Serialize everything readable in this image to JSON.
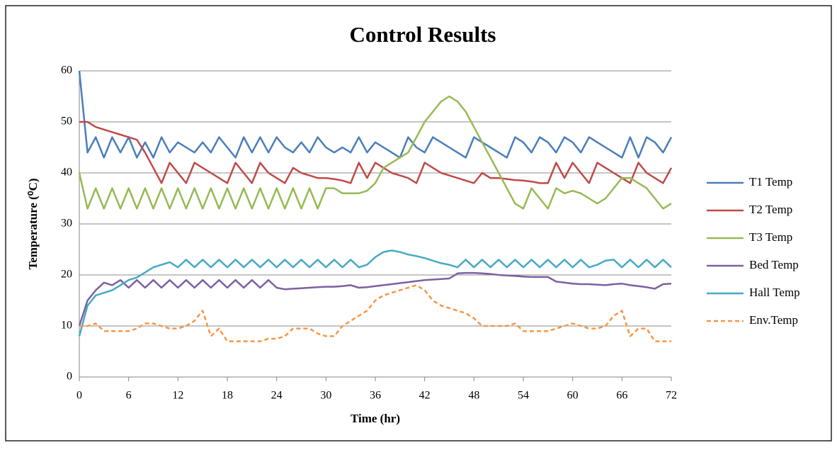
{
  "chart_data": {
    "type": "line",
    "title": "Control Results",
    "y_label": "Temperature (⁰C)",
    "x_label": "Time (hr)",
    "x": [
      0,
      1,
      2,
      3,
      4,
      5,
      6,
      7,
      8,
      9,
      10,
      11,
      12,
      13,
      14,
      15,
      16,
      17,
      18,
      19,
      20,
      21,
      22,
      23,
      24,
      25,
      26,
      27,
      28,
      29,
      30,
      31,
      32,
      33,
      34,
      35,
      36,
      37,
      38,
      39,
      40,
      41,
      42,
      43,
      44,
      45,
      46,
      47,
      48,
      49,
      50,
      51,
      52,
      53,
      54,
      55,
      56,
      57,
      58,
      59,
      60,
      61,
      62,
      63,
      64,
      65,
      66,
      67,
      68,
      69,
      70,
      71,
      72
    ],
    "xlim": [
      0,
      72
    ],
    "xticks": [
      0,
      6,
      12,
      18,
      24,
      30,
      36,
      42,
      48,
      54,
      60,
      66,
      72
    ],
    "ylim": [
      0,
      60
    ],
    "yticks": [
      0,
      10,
      20,
      30,
      40,
      50,
      60
    ],
    "grid": true,
    "legend": "right",
    "series": [
      {
        "name": "T1 Temp",
        "color": "#4a7ebb",
        "values": [
          60,
          44,
          47,
          43,
          47,
          44,
          47,
          43,
          46,
          43,
          47,
          44,
          46,
          45,
          44,
          46,
          44,
          47,
          45,
          43,
          47,
          44,
          47,
          44,
          47,
          45,
          44,
          46,
          44,
          47,
          45,
          44,
          45,
          44,
          47,
          44,
          46,
          45,
          44,
          43,
          47,
          45,
          44,
          47,
          46,
          45,
          44,
          43,
          47,
          46,
          45,
          44,
          43,
          47,
          46,
          44,
          47,
          46,
          44,
          47,
          46,
          44,
          47,
          46,
          45,
          44,
          43,
          47,
          43,
          47,
          46,
          44,
          47
        ]
      },
      {
        "name": "T2 Temp",
        "color": "#be4b48",
        "values": [
          50,
          50,
          49,
          48.5,
          48,
          47.5,
          47,
          46.5,
          44,
          41,
          38,
          42,
          40,
          38,
          42,
          41,
          40,
          39,
          38,
          42,
          40,
          38,
          42,
          40,
          39,
          38,
          41,
          40,
          39.5,
          39,
          39,
          38.8,
          38.5,
          38,
          42,
          39,
          42,
          41,
          40,
          39.5,
          39,
          38,
          42,
          41,
          40,
          39.5,
          39,
          38.5,
          38,
          40,
          39,
          39,
          38.8,
          38.6,
          38.5,
          38.3,
          38,
          38,
          42,
          39,
          42,
          40,
          38,
          42,
          41,
          40,
          39,
          38,
          42,
          40,
          39,
          38,
          41
        ]
      },
      {
        "name": "T3 Temp",
        "color": "#98b954",
        "values": [
          40,
          33,
          37,
          33,
          37,
          33,
          37,
          33,
          37,
          33,
          37,
          33,
          37,
          33,
          37,
          33,
          37,
          33,
          37,
          33,
          37,
          33,
          37,
          33,
          37,
          33,
          37,
          33,
          37,
          33,
          37,
          37,
          36,
          36,
          36,
          36.5,
          38,
          41,
          42,
          43,
          44,
          47,
          50,
          52,
          54,
          55,
          54,
          52,
          49,
          46,
          43,
          40,
          37,
          34,
          33,
          37,
          35,
          33,
          37,
          36,
          36.5,
          36,
          35,
          34,
          35,
          37,
          39,
          39,
          38,
          37,
          35,
          33,
          34
        ]
      },
      {
        "name": "Bed Temp",
        "color": "#7d60a0",
        "values": [
          10,
          15,
          17,
          18.5,
          18,
          19,
          17.5,
          19,
          17.5,
          19,
          17.5,
          19,
          17.5,
          19,
          17.5,
          19,
          17.5,
          19,
          17.5,
          19,
          17.5,
          19,
          17.5,
          19,
          17.5,
          17.2,
          17.3,
          17.4,
          17.5,
          17.6,
          17.7,
          17.7,
          17.8,
          18,
          17.5,
          17.6,
          17.8,
          18,
          18.2,
          18.4,
          18.6,
          18.8,
          19,
          19.1,
          19.2,
          19.3,
          20.3,
          20.4,
          20.4,
          20.3,
          20.2,
          20,
          19.9,
          19.8,
          19.7,
          19.6,
          19.6,
          19.6,
          18.7,
          18.5,
          18.3,
          18.2,
          18.2,
          18.1,
          18,
          18.2,
          18.3,
          18,
          17.8,
          17.6,
          17.3,
          18.2,
          18.3
        ]
      },
      {
        "name": "Hall Temp",
        "color": "#46aac5",
        "values": [
          8,
          14,
          16,
          16.5,
          17,
          18,
          19,
          19.5,
          20.5,
          21.5,
          22,
          22.5,
          21.5,
          23,
          21.5,
          23,
          21.5,
          23,
          21.5,
          23,
          21.5,
          23,
          21.5,
          23,
          21.5,
          23,
          21.5,
          23,
          21.5,
          23,
          21.5,
          23,
          21.5,
          23,
          21.5,
          22,
          23.5,
          24.5,
          24.8,
          24.5,
          24,
          23.7,
          23.3,
          22.8,
          22.3,
          22,
          21.5,
          23,
          21.5,
          23,
          21.5,
          23,
          21.5,
          23,
          21.5,
          23,
          21.5,
          23,
          21.5,
          23,
          21.5,
          23,
          21.5,
          22,
          22.8,
          23,
          21.5,
          23,
          21.5,
          23,
          21.5,
          23,
          21.5
        ]
      },
      {
        "name": "Env.Temp",
        "color": "#f79646",
        "dashed": true,
        "values": [
          10,
          10,
          10.5,
          9,
          9,
          9,
          9,
          9.5,
          10.5,
          10.5,
          10,
          9.5,
          9.5,
          10,
          11,
          13,
          8,
          9.5,
          7,
          7,
          7,
          7,
          7,
          7.5,
          7.5,
          8,
          9.5,
          9.5,
          9.5,
          8.5,
          8,
          8,
          10,
          11,
          12,
          13,
          15,
          16,
          16.5,
          17,
          17.5,
          18,
          17,
          15,
          14,
          13.5,
          13,
          12.5,
          11.5,
          10,
          10,
          10,
          10,
          10.5,
          9,
          9,
          9,
          9,
          9.5,
          10,
          10.5,
          10,
          9.5,
          9.5,
          10,
          12,
          13,
          8,
          9.5,
          9.5,
          7,
          7,
          7
        ]
      }
    ]
  }
}
